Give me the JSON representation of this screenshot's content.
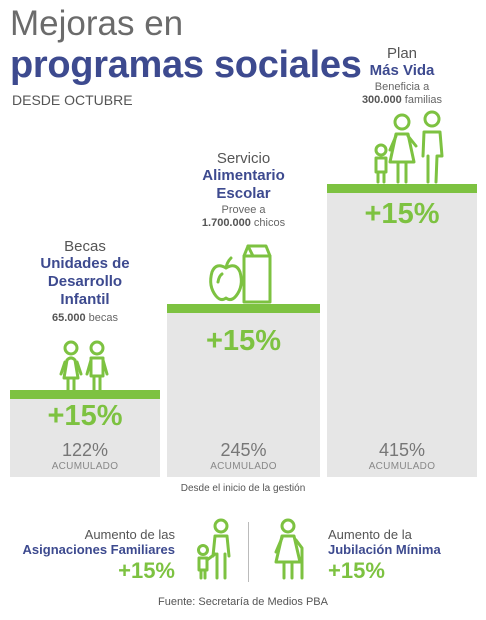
{
  "header": {
    "title_line1": "Mejoras en",
    "title_line2": "programas sociales",
    "subtitle": "DESDE OCTUBRE"
  },
  "programs": [
    {
      "pre": "Becas",
      "name_line1": "Unidades de",
      "name_line2": "Desarrollo",
      "name_line3": "Infantil",
      "desc_line1": "",
      "desc_bold": "65.000",
      "desc_rest": "becas",
      "increase": "+15%",
      "accumulated": "122%",
      "accumulated_label": "ACUMULADO",
      "icon": "children-icon"
    },
    {
      "pre": "Servicio",
      "name_line1": "Alimentario",
      "name_line2": "Escolar",
      "desc_line1": "Provee a",
      "desc_bold": "1.700.000",
      "desc_rest": "chicos",
      "increase": "+15%",
      "accumulated": "245%",
      "accumulated_label": "ACUMULADO",
      "icon": "apple-milk-icon"
    },
    {
      "pre": "Plan",
      "name_line1": "Más Vida",
      "desc_line1": "Beneficia a",
      "desc_bold": "300.000",
      "desc_rest": "familias",
      "increase": "+15%",
      "accumulated": "415%",
      "accumulated_label": "ACUMULADO",
      "icon": "family-icon"
    }
  ],
  "since_note": "Desde el inicio de la gestión",
  "bottom": {
    "left": {
      "line1": "Aumento de las",
      "line2": "Asignaciones Familiares",
      "increase": "+15%",
      "icon": "parent-child-icon"
    },
    "right": {
      "line1": "Aumento de la",
      "line2": "Jubilación Mínima",
      "increase": "+15%",
      "icon": "elderly-person-icon"
    }
  },
  "source": "Fuente: Secretaría de Medios PBA",
  "colors": {
    "accent_green": "#7dc241",
    "title_blue": "#3d4a8f",
    "bar_gray": "#e6e6e6"
  }
}
